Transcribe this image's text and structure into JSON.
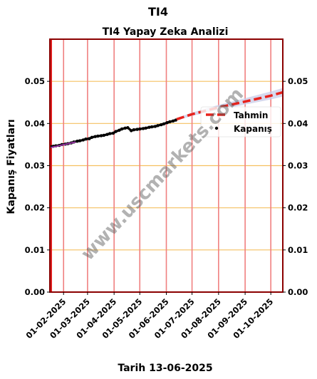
{
  "chart_data": {
    "type": "line",
    "suptitle": "TI4",
    "title": "TI4 Yapay Zeka Analizi",
    "xlabel": "Tarih 13-06-2025",
    "ylabel": "Kapanış Fiyatları",
    "ylim": [
      0,
      0.06
    ],
    "yticks": [
      "0.00",
      "0.01",
      "0.02",
      "0.03",
      "0.04",
      "0.05"
    ],
    "ytick_values": [
      0,
      0.01,
      0.02,
      0.03,
      0.04,
      0.05
    ],
    "xlim": [
      "2025-01-16",
      "2025-10-15"
    ],
    "xticks": [
      "01-02-2025",
      "01-03-2025",
      "01-04-2025",
      "01-05-2025",
      "01-06-2025",
      "01-07-2025",
      "01-08-2025",
      "01-09-2025",
      "01-10-2025"
    ],
    "xtick_dates": [
      "2025-02-01",
      "2025-03-01",
      "2025-04-01",
      "2025-05-01",
      "2025-06-01",
      "2025-07-01",
      "2025-08-01",
      "2025-09-01",
      "2025-10-01"
    ],
    "grid": "on",
    "legend_position": "right",
    "legend": [
      "Tahmin",
      "Kapanış"
    ],
    "watermark": "www.uscmarkets.com",
    "colors": {
      "forecast": "#e8221c",
      "close": "#000000",
      "regression": "#b040c0",
      "band": "#c8cce8",
      "vgrid": "#f08080",
      "hgrid": "#f5c060",
      "frame": "#8b0000"
    },
    "series": [
      {
        "name": "Kapanış",
        "style": "points",
        "x": [
          "2025-01-17",
          "2025-01-20",
          "2025-01-23",
          "2025-01-27",
          "2025-01-30",
          "2025-02-03",
          "2025-02-06",
          "2025-02-10",
          "2025-02-13",
          "2025-02-17",
          "2025-02-20",
          "2025-02-24",
          "2025-02-27",
          "2025-03-03",
          "2025-03-06",
          "2025-03-10",
          "2025-03-13",
          "2025-03-17",
          "2025-03-20",
          "2025-03-24",
          "2025-03-27",
          "2025-03-31",
          "2025-04-03",
          "2025-04-07",
          "2025-04-10",
          "2025-04-14",
          "2025-04-17",
          "2025-04-21",
          "2025-04-24",
          "2025-04-28",
          "2025-05-01",
          "2025-05-05",
          "2025-05-08",
          "2025-05-12",
          "2025-05-15",
          "2025-05-19",
          "2025-05-22",
          "2025-05-26",
          "2025-05-29",
          "2025-06-02",
          "2025-06-05",
          "2025-06-09",
          "2025-06-12"
        ],
        "y": [
          0.0345,
          0.0346,
          0.0347,
          0.0348,
          0.035,
          0.0351,
          0.0352,
          0.0354,
          0.0356,
          0.0358,
          0.0359,
          0.0361,
          0.0363,
          0.0364,
          0.0367,
          0.0369,
          0.037,
          0.0371,
          0.0372,
          0.0374,
          0.0376,
          0.0377,
          0.0381,
          0.0384,
          0.0387,
          0.0389,
          0.039,
          0.0383,
          0.0385,
          0.0386,
          0.0387,
          0.0388,
          0.0389,
          0.0391,
          0.0392,
          0.0393,
          0.0395,
          0.0397,
          0.0399,
          0.0402,
          0.0404,
          0.0406,
          0.0408
        ]
      },
      {
        "name": "Tahmin",
        "style": "dashed",
        "x": [
          "2025-06-13",
          "2025-07-01",
          "2025-08-01",
          "2025-09-01",
          "2025-10-01",
          "2025-10-15"
        ],
        "y": [
          0.041,
          0.0422,
          0.0438,
          0.0452,
          0.0466,
          0.0474
        ]
      },
      {
        "name": "",
        "style": "regression",
        "x": [
          "2025-01-17",
          "2025-02-15"
        ],
        "y": [
          0.0343,
          0.0356
        ]
      }
    ],
    "band": {
      "x": [
        "2025-06-13",
        "2025-07-01",
        "2025-08-01",
        "2025-09-01",
        "2025-10-01",
        "2025-10-15"
      ],
      "lower": [
        0.0407,
        0.0418,
        0.0432,
        0.0445,
        0.0457,
        0.0464
      ],
      "upper": [
        0.0413,
        0.0426,
        0.0444,
        0.046,
        0.0476,
        0.0484
      ]
    }
  }
}
